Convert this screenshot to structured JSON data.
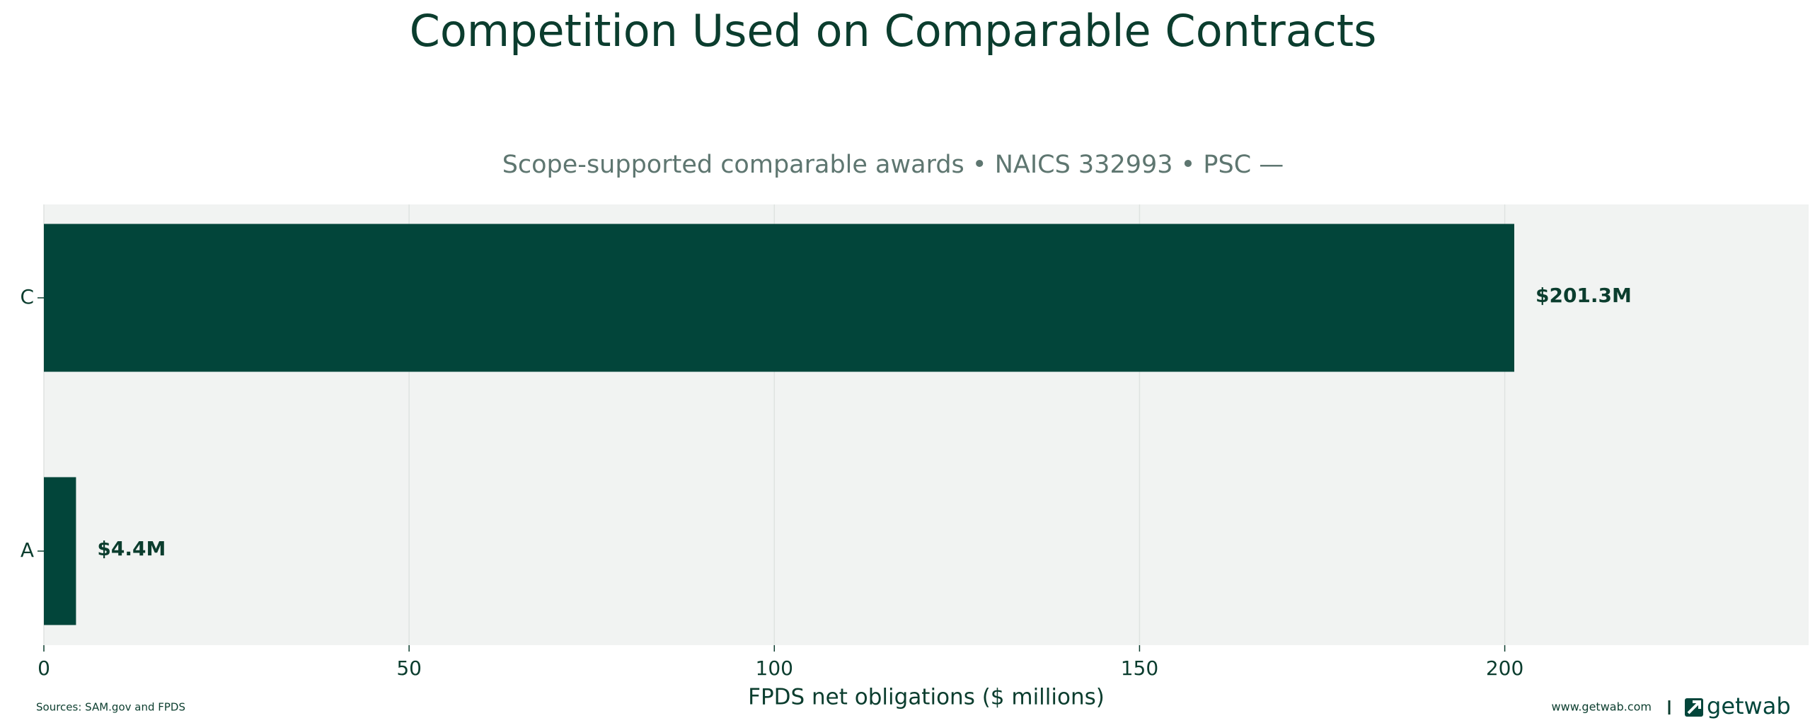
{
  "chart_data": {
    "type": "hbar",
    "title": "Competition Used on Comparable Contracts",
    "subtitle": "Scope-supported comparable awards • NAICS 332993 • PSC —",
    "xlabel": "FPDS net obligations ($ millions)",
    "categories": [
      "C",
      "A"
    ],
    "values": [
      201.3,
      4.4
    ],
    "value_labels": [
      "$201.3M",
      "$4.4M"
    ],
    "color": "#02453a",
    "xlim": [
      0,
      241.6
    ],
    "xticks": [
      0,
      50,
      100,
      150,
      200
    ],
    "grid": true
  },
  "footer": {
    "source": "Sources: SAM.gov and FPDS",
    "website": "www.getwab.com",
    "brand": "getwab"
  }
}
